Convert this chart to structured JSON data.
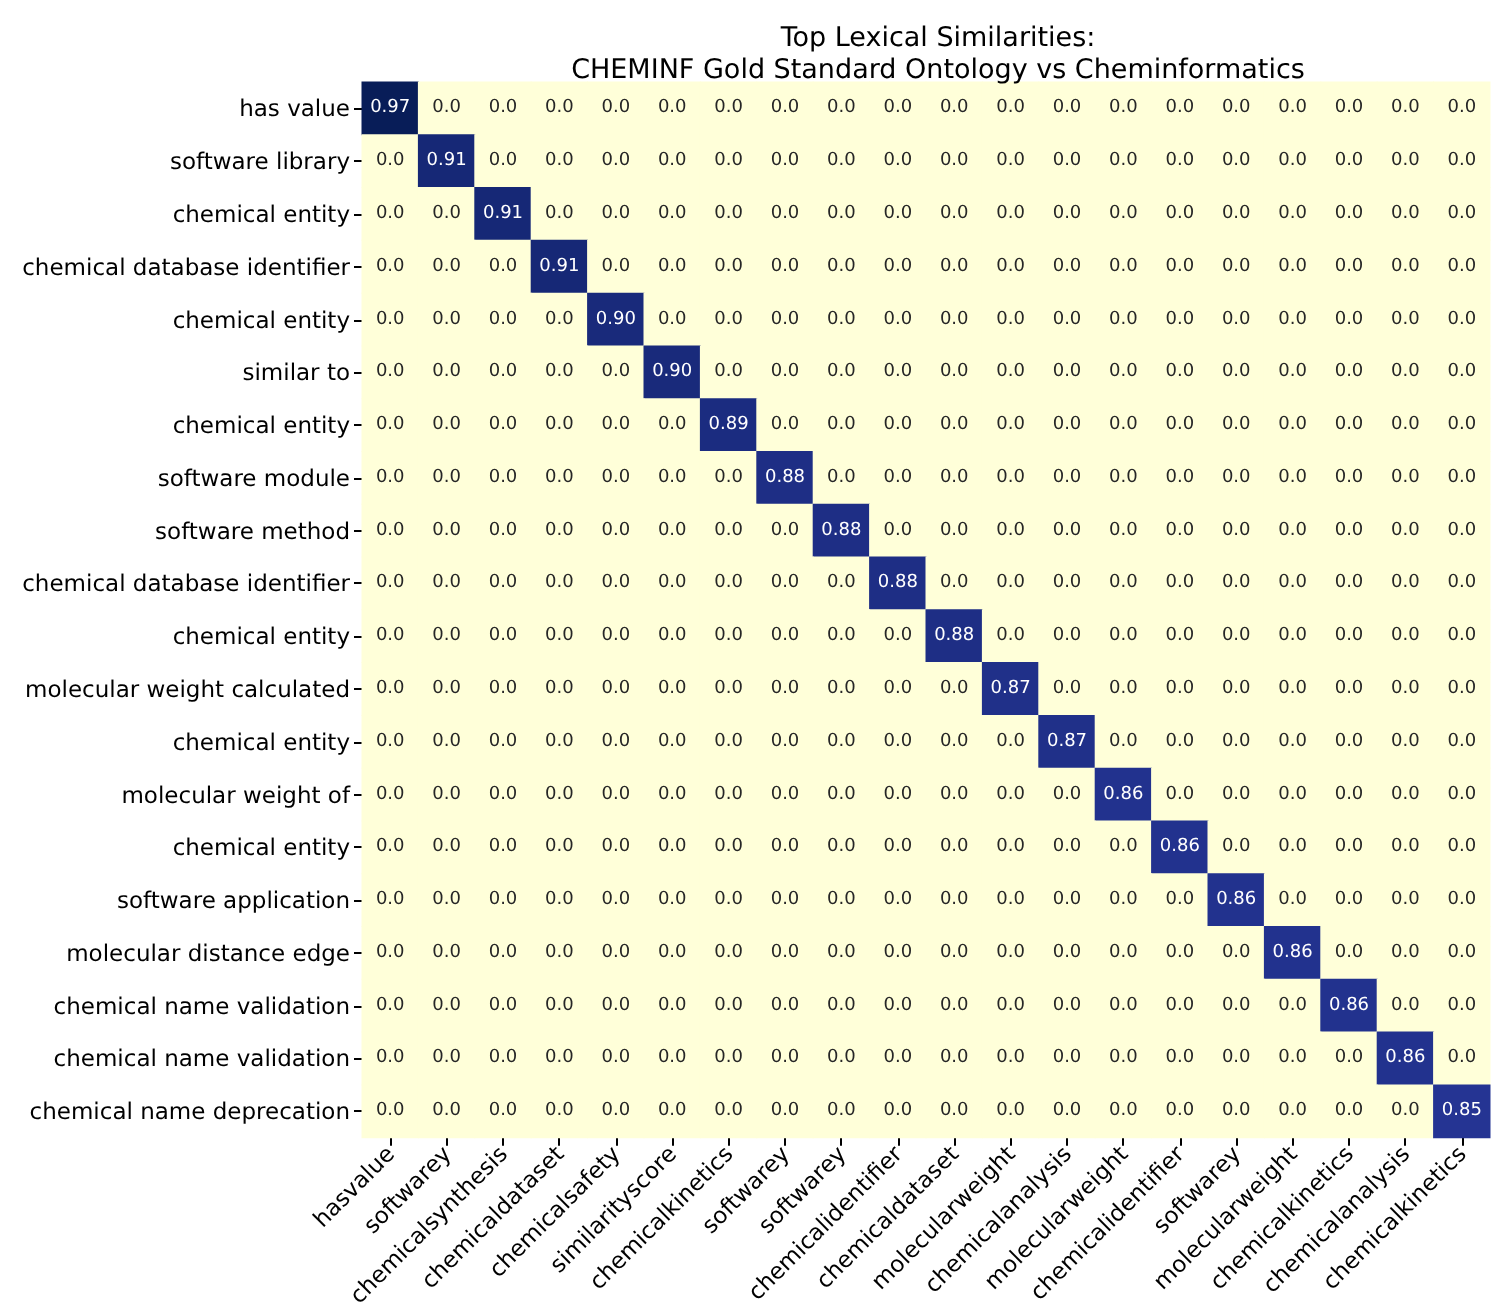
{
  "chart_data": {
    "type": "heatmap",
    "title": "Top Lexical Similarities:\nCHEMINF Gold Standard Ontology vs Cheminformatics",
    "categories": [
      "hasvalue",
      "softwarey",
      "chemicalsynthesis",
      "chemicaldataset",
      "chemicalsafety",
      "similarityscore",
      "chemicalkinetics",
      "softwarey",
      "softwarey",
      "chemicalidentifier",
      "chemicaldataset",
      "molecularweight",
      "chemicalanalysis",
      "molecularweight",
      "chemicalidentifier",
      "softwarey",
      "molecularweight",
      "chemicalkinetics",
      "chemicalanalysis",
      "chemicalkinetics"
    ],
    "y_categories": [
      "has value",
      "software library",
      "chemical entity",
      "chemical database identifier",
      "chemical entity",
      "similar to",
      "chemical entity",
      "software module",
      "software method",
      "chemical database identifier",
      "chemical entity",
      "molecular weight calculated",
      "chemical entity",
      "molecular weight of",
      "chemical entity",
      "software application",
      "molecular distance edge",
      "chemical name validation",
      "chemical name validation",
      "chemical name deprecation"
    ],
    "cells": [
      [
        0.97,
        0,
        0,
        0,
        0,
        0,
        0,
        0,
        0,
        0,
        0,
        0,
        0,
        0,
        0,
        0,
        0,
        0,
        0,
        0
      ],
      [
        0,
        0.91,
        0,
        0,
        0,
        0,
        0,
        0,
        0,
        0,
        0,
        0,
        0,
        0,
        0,
        0,
        0,
        0,
        0,
        0
      ],
      [
        0,
        0,
        0.91,
        0,
        0,
        0,
        0,
        0,
        0,
        0,
        0,
        0,
        0,
        0,
        0,
        0,
        0,
        0,
        0,
        0
      ],
      [
        0,
        0,
        0,
        0.91,
        0,
        0,
        0,
        0,
        0,
        0,
        0,
        0,
        0,
        0,
        0,
        0,
        0,
        0,
        0,
        0
      ],
      [
        0,
        0,
        0,
        0,
        0.9,
        0,
        0,
        0,
        0,
        0,
        0,
        0,
        0,
        0,
        0,
        0,
        0,
        0,
        0,
        0
      ],
      [
        0,
        0,
        0,
        0,
        0,
        0.9,
        0,
        0,
        0,
        0,
        0,
        0,
        0,
        0,
        0,
        0,
        0,
        0,
        0,
        0
      ],
      [
        0,
        0,
        0,
        0,
        0,
        0,
        0.89,
        0,
        0,
        0,
        0,
        0,
        0,
        0,
        0,
        0,
        0,
        0,
        0,
        0
      ],
      [
        0,
        0,
        0,
        0,
        0,
        0,
        0,
        0.88,
        0,
        0,
        0,
        0,
        0,
        0,
        0,
        0,
        0,
        0,
        0,
        0
      ],
      [
        0,
        0,
        0,
        0,
        0,
        0,
        0,
        0,
        0.88,
        0,
        0,
        0,
        0,
        0,
        0,
        0,
        0,
        0,
        0,
        0
      ],
      [
        0,
        0,
        0,
        0,
        0,
        0,
        0,
        0,
        0,
        0.88,
        0,
        0,
        0,
        0,
        0,
        0,
        0,
        0,
        0,
        0
      ],
      [
        0,
        0,
        0,
        0,
        0,
        0,
        0,
        0,
        0,
        0,
        0.88,
        0,
        0,
        0,
        0,
        0,
        0,
        0,
        0,
        0
      ],
      [
        0,
        0,
        0,
        0,
        0,
        0,
        0,
        0,
        0,
        0,
        0,
        0.87,
        0,
        0,
        0,
        0,
        0,
        0,
        0,
        0
      ],
      [
        0,
        0,
        0,
        0,
        0,
        0,
        0,
        0,
        0,
        0,
        0,
        0,
        0.87,
        0,
        0,
        0,
        0,
        0,
        0,
        0
      ],
      [
        0,
        0,
        0,
        0,
        0,
        0,
        0,
        0,
        0,
        0,
        0,
        0,
        0,
        0.86,
        0,
        0,
        0,
        0,
        0,
        0
      ],
      [
        0,
        0,
        0,
        0,
        0,
        0,
        0,
        0,
        0,
        0,
        0,
        0,
        0,
        0,
        0.86,
        0,
        0,
        0,
        0,
        0
      ],
      [
        0,
        0,
        0,
        0,
        0,
        0,
        0,
        0,
        0,
        0,
        0,
        0,
        0,
        0,
        0,
        0.86,
        0,
        0,
        0,
        0
      ],
      [
        0,
        0,
        0,
        0,
        0,
        0,
        0,
        0,
        0,
        0,
        0,
        0,
        0,
        0,
        0,
        0,
        0.86,
        0,
        0,
        0
      ],
      [
        0,
        0,
        0,
        0,
        0,
        0,
        0,
        0,
        0,
        0,
        0,
        0,
        0,
        0,
        0,
        0,
        0,
        0.86,
        0,
        0
      ],
      [
        0,
        0,
        0,
        0,
        0,
        0,
        0,
        0,
        0,
        0,
        0,
        0,
        0,
        0,
        0,
        0,
        0,
        0,
        0.86,
        0
      ],
      [
        0,
        0,
        0,
        0,
        0,
        0,
        0,
        0,
        0,
        0,
        0,
        0,
        0,
        0,
        0,
        0,
        0,
        0,
        0,
        0.85
      ]
    ],
    "cell_labels": [
      [
        "0.97",
        "0.0",
        "0.0",
        "0.0",
        "0.0",
        "0.0",
        "0.0",
        "0.0",
        "0.0",
        "0.0",
        "0.0",
        "0.0",
        "0.0",
        "0.0",
        "0.0",
        "0.0",
        "0.0",
        "0.0",
        "0.0",
        "0.0"
      ],
      [
        "0.0",
        "0.91",
        "0.0",
        "0.0",
        "0.0",
        "0.0",
        "0.0",
        "0.0",
        "0.0",
        "0.0",
        "0.0",
        "0.0",
        "0.0",
        "0.0",
        "0.0",
        "0.0",
        "0.0",
        "0.0",
        "0.0",
        "0.0"
      ],
      [
        "0.0",
        "0.0",
        "0.91",
        "0.0",
        "0.0",
        "0.0",
        "0.0",
        "0.0",
        "0.0",
        "0.0",
        "0.0",
        "0.0",
        "0.0",
        "0.0",
        "0.0",
        "0.0",
        "0.0",
        "0.0",
        "0.0",
        "0.0"
      ],
      [
        "0.0",
        "0.0",
        "0.0",
        "0.91",
        "0.0",
        "0.0",
        "0.0",
        "0.0",
        "0.0",
        "0.0",
        "0.0",
        "0.0",
        "0.0",
        "0.0",
        "0.0",
        "0.0",
        "0.0",
        "0.0",
        "0.0",
        "0.0"
      ],
      [
        "0.0",
        "0.0",
        "0.0",
        "0.0",
        "0.90",
        "0.0",
        "0.0",
        "0.0",
        "0.0",
        "0.0",
        "0.0",
        "0.0",
        "0.0",
        "0.0",
        "0.0",
        "0.0",
        "0.0",
        "0.0",
        "0.0",
        "0.0"
      ],
      [
        "0.0",
        "0.0",
        "0.0",
        "0.0",
        "0.0",
        "0.90",
        "0.0",
        "0.0",
        "0.0",
        "0.0",
        "0.0",
        "0.0",
        "0.0",
        "0.0",
        "0.0",
        "0.0",
        "0.0",
        "0.0",
        "0.0",
        "0.0"
      ],
      [
        "0.0",
        "0.0",
        "0.0",
        "0.0",
        "0.0",
        "0.0",
        "0.89",
        "0.0",
        "0.0",
        "0.0",
        "0.0",
        "0.0",
        "0.0",
        "0.0",
        "0.0",
        "0.0",
        "0.0",
        "0.0",
        "0.0",
        "0.0"
      ],
      [
        "0.0",
        "0.0",
        "0.0",
        "0.0",
        "0.0",
        "0.0",
        "0.0",
        "0.88",
        "0.0",
        "0.0",
        "0.0",
        "0.0",
        "0.0",
        "0.0",
        "0.0",
        "0.0",
        "0.0",
        "0.0",
        "0.0",
        "0.0"
      ],
      [
        "0.0",
        "0.0",
        "0.0",
        "0.0",
        "0.0",
        "0.0",
        "0.0",
        "0.0",
        "0.88",
        "0.0",
        "0.0",
        "0.0",
        "0.0",
        "0.0",
        "0.0",
        "0.0",
        "0.0",
        "0.0",
        "0.0",
        "0.0"
      ],
      [
        "0.0",
        "0.0",
        "0.0",
        "0.0",
        "0.0",
        "0.0",
        "0.0",
        "0.0",
        "0.0",
        "0.88",
        "0.0",
        "0.0",
        "0.0",
        "0.0",
        "0.0",
        "0.0",
        "0.0",
        "0.0",
        "0.0",
        "0.0"
      ],
      [
        "0.0",
        "0.0",
        "0.0",
        "0.0",
        "0.0",
        "0.0",
        "0.0",
        "0.0",
        "0.0",
        "0.0",
        "0.88",
        "0.0",
        "0.0",
        "0.0",
        "0.0",
        "0.0",
        "0.0",
        "0.0",
        "0.0",
        "0.0"
      ],
      [
        "0.0",
        "0.0",
        "0.0",
        "0.0",
        "0.0",
        "0.0",
        "0.0",
        "0.0",
        "0.0",
        "0.0",
        "0.0",
        "0.87",
        "0.0",
        "0.0",
        "0.0",
        "0.0",
        "0.0",
        "0.0",
        "0.0",
        "0.0"
      ],
      [
        "0.0",
        "0.0",
        "0.0",
        "0.0",
        "0.0",
        "0.0",
        "0.0",
        "0.0",
        "0.0",
        "0.0",
        "0.0",
        "0.0",
        "0.87",
        "0.0",
        "0.0",
        "0.0",
        "0.0",
        "0.0",
        "0.0",
        "0.0"
      ],
      [
        "0.0",
        "0.0",
        "0.0",
        "0.0",
        "0.0",
        "0.0",
        "0.0",
        "0.0",
        "0.0",
        "0.0",
        "0.0",
        "0.0",
        "0.0",
        "0.86",
        "0.0",
        "0.0",
        "0.0",
        "0.0",
        "0.0",
        "0.0"
      ],
      [
        "0.0",
        "0.0",
        "0.0",
        "0.0",
        "0.0",
        "0.0",
        "0.0",
        "0.0",
        "0.0",
        "0.0",
        "0.0",
        "0.0",
        "0.0",
        "0.0",
        "0.86",
        "0.0",
        "0.0",
        "0.0",
        "0.0",
        "0.0"
      ],
      [
        "0.0",
        "0.0",
        "0.0",
        "0.0",
        "0.0",
        "0.0",
        "0.0",
        "0.0",
        "0.0",
        "0.0",
        "0.0",
        "0.0",
        "0.0",
        "0.0",
        "0.0",
        "0.86",
        "0.0",
        "0.0",
        "0.0",
        "0.0"
      ],
      [
        "0.0",
        "0.0",
        "0.0",
        "0.0",
        "0.0",
        "0.0",
        "0.0",
        "0.0",
        "0.0",
        "0.0",
        "0.0",
        "0.0",
        "0.0",
        "0.0",
        "0.0",
        "0.0",
        "0.86",
        "0.0",
        "0.0",
        "0.0"
      ],
      [
        "0.0",
        "0.0",
        "0.0",
        "0.0",
        "0.0",
        "0.0",
        "0.0",
        "0.0",
        "0.0",
        "0.0",
        "0.0",
        "0.0",
        "0.0",
        "0.0",
        "0.0",
        "0.0",
        "0.0",
        "0.86",
        "0.0",
        "0.0"
      ],
      [
        "0.0",
        "0.0",
        "0.0",
        "0.0",
        "0.0",
        "0.0",
        "0.0",
        "0.0",
        "0.0",
        "0.0",
        "0.0",
        "0.0",
        "0.0",
        "0.0",
        "0.0",
        "0.0",
        "0.0",
        "0.0",
        "0.86",
        "0.0"
      ],
      [
        "0.0",
        "0.0",
        "0.0",
        "0.0",
        "0.0",
        "0.0",
        "0.0",
        "0.0",
        "0.0",
        "0.0",
        "0.0",
        "0.0",
        "0.0",
        "0.0",
        "0.0",
        "0.0",
        "0.0",
        "0.0",
        "0.0",
        "0.85"
      ]
    ]
  }
}
